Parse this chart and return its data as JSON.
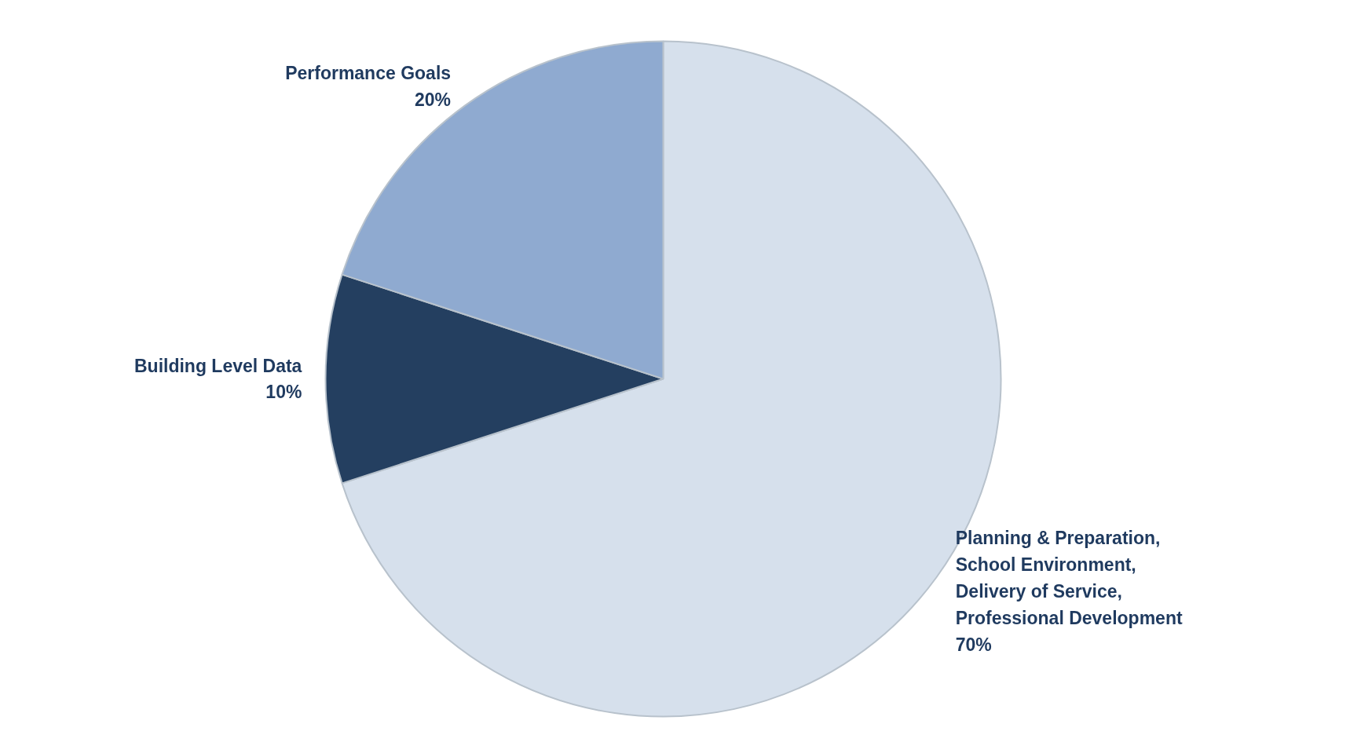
{
  "chart_data": {
    "type": "pie",
    "categories": [
      "Planning & Preparation,\nSchool Environment,\nDelivery of Service,\nProfessional Development",
      "Building Level Data",
      "Performance Goals"
    ],
    "values": [
      70,
      10,
      20
    ],
    "value_labels": [
      "70%",
      "10%",
      "20%"
    ],
    "colors": [
      "#d6e0ec",
      "#243f60",
      "#8faad0"
    ]
  }
}
